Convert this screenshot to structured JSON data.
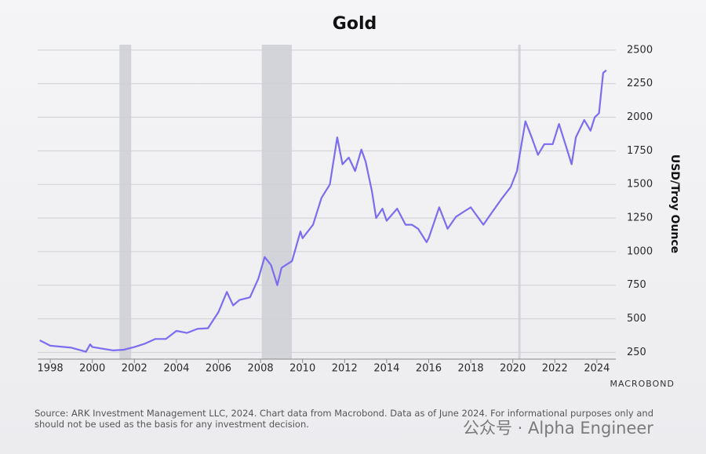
{
  "chart_data": {
    "type": "line",
    "title": "Gold",
    "y_axis_label": "USD/Troy Ounce",
    "color": "#7b6cf0",
    "grid": true,
    "y_axis_side": "right",
    "xlim": [
      1997.4,
      2024.9
    ],
    "xticks": [
      1998,
      2000,
      2002,
      2004,
      2006,
      2008,
      2010,
      2012,
      2014,
      2016,
      2018,
      2020,
      2022,
      2024
    ],
    "ylim": [
      200,
      2540
    ],
    "yticks": [
      250,
      500,
      750,
      1000,
      1250,
      1500,
      1750,
      2000,
      2250,
      2500
    ],
    "shaded_regions": [
      [
        2001.29,
        2001.85
      ],
      [
        2008.06,
        2009.49
      ],
      [
        2020.26,
        2020.37
      ]
    ],
    "x": [
      1997.5,
      1998,
      1999,
      1999.7,
      1999.9,
      2000,
      2001,
      2001.5,
      2002,
      2002.5,
      2003,
      2003.5,
      2004,
      2004.5,
      2005,
      2005.5,
      2006,
      2006.4,
      2006.7,
      2007,
      2007.5,
      2007.9,
      2008.2,
      2008.5,
      2008.8,
      2009,
      2009.5,
      2009.9,
      2010,
      2010.5,
      2010.9,
      2011.3,
      2011.65,
      2011.9,
      2012.2,
      2012.5,
      2012.8,
      2013,
      2013.3,
      2013.5,
      2013.8,
      2014,
      2014.5,
      2014.9,
      2015.2,
      2015.5,
      2015.9,
      2016,
      2016.5,
      2016.9,
      2017.3,
      2017.7,
      2018,
      2018.6,
      2019,
      2019.5,
      2019.9,
      2020.2,
      2020.6,
      2020.9,
      2021.2,
      2021.5,
      2021.9,
      2022.2,
      2022.5,
      2022.8,
      2023,
      2023.4,
      2023.7,
      2023.9,
      2024.1,
      2024.3,
      2024.45
    ],
    "values": [
      340,
      300,
      285,
      255,
      310,
      290,
      265,
      270,
      290,
      315,
      350,
      350,
      410,
      395,
      425,
      430,
      550,
      700,
      600,
      640,
      660,
      800,
      960,
      900,
      750,
      880,
      930,
      1150,
      1100,
      1200,
      1400,
      1500,
      1850,
      1650,
      1700,
      1600,
      1760,
      1670,
      1450,
      1250,
      1320,
      1230,
      1320,
      1200,
      1200,
      1170,
      1070,
      1100,
      1330,
      1170,
      1260,
      1300,
      1330,
      1200,
      1290,
      1400,
      1480,
      1600,
      1970,
      1850,
      1720,
      1800,
      1800,
      1950,
      1800,
      1650,
      1850,
      1980,
      1900,
      2000,
      2030,
      2330,
      2350
    ],
    "source": "Source: ARK Investment Management LLC, 2024. Chart data from Macrobond. Data as of June 2024. For informational purposes only and should not be used as the basis for any investment decision.",
    "logo": "MACROBOND"
  },
  "watermark": "公众号 · Alpha Engineer"
}
